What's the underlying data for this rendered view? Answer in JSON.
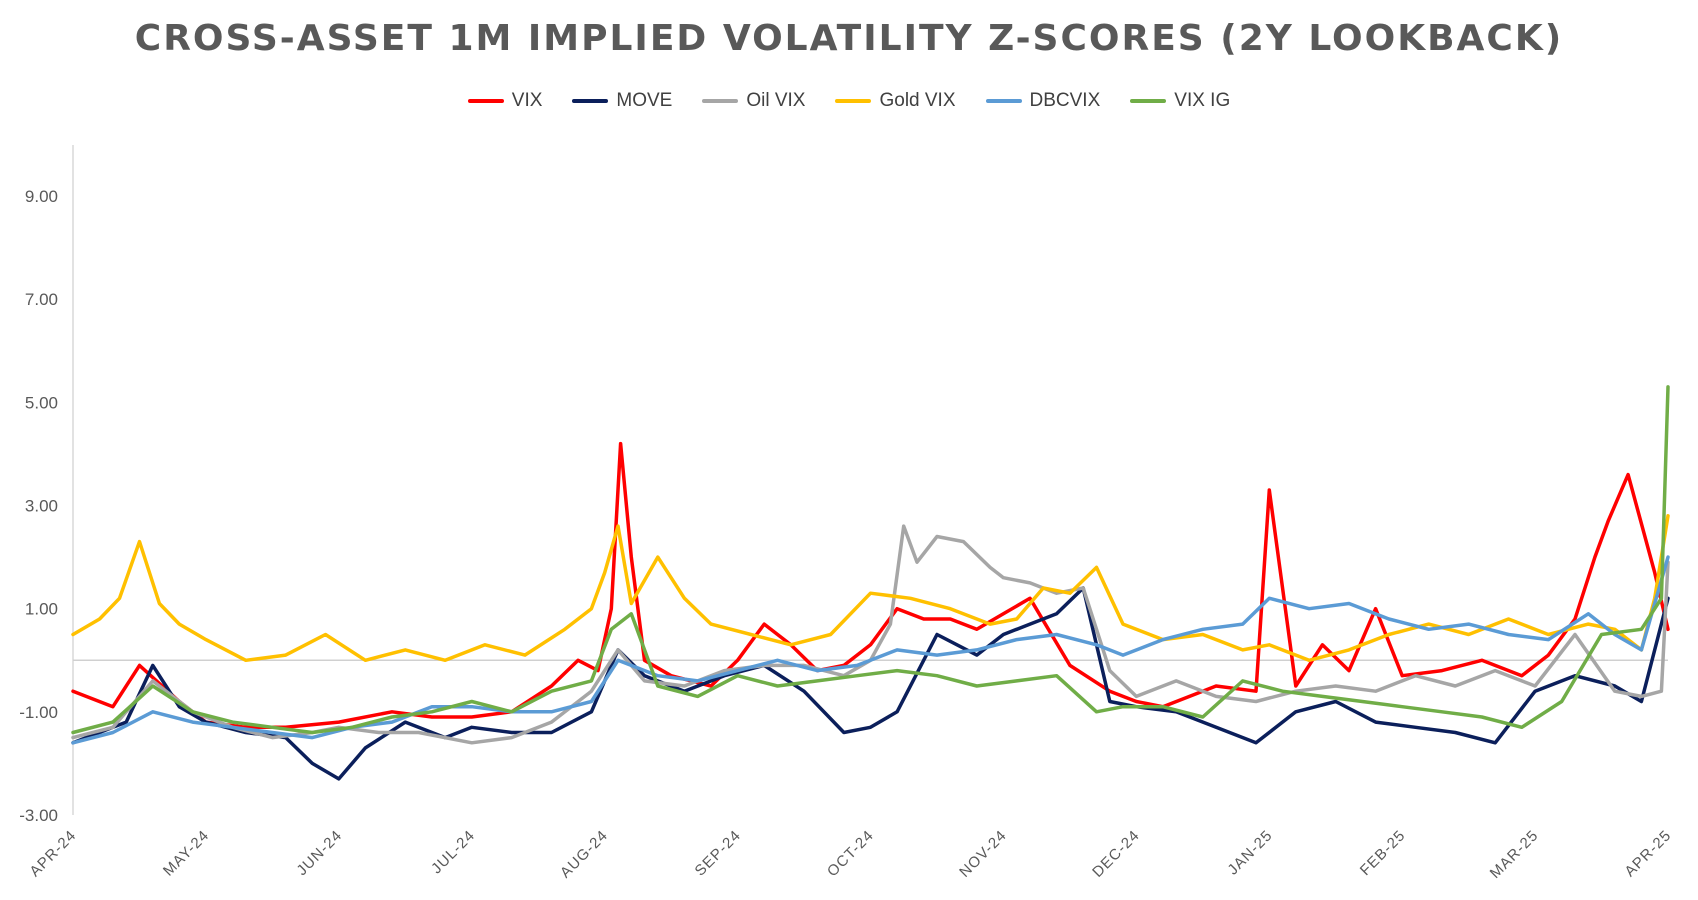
{
  "chart_data": {
    "type": "line",
    "title": "CROSS-ASSET 1M IMPLIED VOLATILITY Z-SCORES (2Y LOOKBACK)",
    "xlabel": "",
    "ylabel": "",
    "ylim": [
      -3,
      10
    ],
    "y_ticks": [
      "9.00",
      "7.00",
      "5.00",
      "3.00",
      "1.00",
      "-1.00",
      "-3.00"
    ],
    "y_tick_values": [
      9,
      7,
      5,
      3,
      1,
      -1,
      -3
    ],
    "x_tick_labels": [
      "APR-24",
      "MAY-24",
      "JUN-24",
      "JUL-24",
      "AUG-24",
      "SEP-24",
      "OCT-24",
      "NOV-24",
      "DEC-24",
      "JAN-25",
      "FEB-25",
      "MAR-25",
      "APR-25"
    ],
    "x_range": [
      0,
      12
    ],
    "x_unit": "months since APR-24",
    "legend_position": "top-center",
    "grid": false,
    "series": [
      {
        "name": "VIX",
        "color": "#FF0000",
        "x": [
          0,
          0.3,
          0.5,
          0.8,
          1.0,
          1.3,
          1.6,
          2.0,
          2.4,
          2.7,
          3.0,
          3.3,
          3.6,
          3.8,
          3.95,
          4.05,
          4.12,
          4.2,
          4.3,
          4.5,
          4.8,
          5.0,
          5.2,
          5.4,
          5.6,
          5.8,
          6.0,
          6.2,
          6.4,
          6.6,
          6.8,
          7.0,
          7.2,
          7.5,
          7.8,
          8.0,
          8.2,
          8.4,
          8.6,
          8.9,
          9.0,
          9.2,
          9.4,
          9.6,
          9.8,
          10.0,
          10.3,
          10.6,
          10.9,
          11.1,
          11.3,
          11.45,
          11.55,
          11.7,
          11.9,
          12.0
        ],
        "values": [
          -0.6,
          -0.9,
          -0.1,
          -0.8,
          -1.2,
          -1.3,
          -1.3,
          -1.2,
          -1.0,
          -1.1,
          -1.1,
          -1.0,
          -0.5,
          0.0,
          -0.2,
          1.0,
          4.2,
          2.0,
          0.0,
          -0.3,
          -0.5,
          0.0,
          0.7,
          0.3,
          -0.2,
          -0.1,
          0.3,
          1.0,
          0.8,
          0.8,
          0.6,
          0.9,
          1.2,
          -0.1,
          -0.6,
          -0.8,
          -0.9,
          -0.7,
          -0.5,
          -0.6,
          3.3,
          -0.5,
          0.3,
          -0.2,
          1.0,
          -0.3,
          -0.2,
          0.0,
          -0.3,
          0.1,
          0.8,
          2.0,
          2.7,
          3.6,
          1.7,
          0.6
        ]
      },
      {
        "name": "MOVE",
        "color": "#0B1F5B",
        "x": [
          0,
          0.4,
          0.6,
          0.8,
          1.0,
          1.3,
          1.6,
          1.8,
          2.0,
          2.2,
          2.5,
          2.8,
          3.0,
          3.3,
          3.6,
          3.9,
          4.1,
          4.3,
          4.6,
          4.9,
          5.2,
          5.5,
          5.8,
          6.0,
          6.2,
          6.5,
          6.8,
          7.0,
          7.2,
          7.4,
          7.6,
          7.8,
          8.0,
          8.3,
          8.6,
          8.9,
          9.2,
          9.5,
          9.8,
          10.1,
          10.4,
          10.7,
          11.0,
          11.3,
          11.6,
          11.8,
          12.0
        ],
        "values": [
          -1.6,
          -1.2,
          -0.1,
          -0.9,
          -1.2,
          -1.4,
          -1.5,
          -2.0,
          -2.3,
          -1.7,
          -1.2,
          -1.5,
          -1.3,
          -1.4,
          -1.4,
          -1.0,
          0.2,
          -0.3,
          -0.6,
          -0.3,
          -0.1,
          -0.6,
          -1.4,
          -1.3,
          -1.0,
          0.5,
          0.1,
          0.5,
          0.7,
          0.9,
          1.4,
          -0.8,
          -0.9,
          -1.0,
          -1.3,
          -1.6,
          -1.0,
          -0.8,
          -1.2,
          -1.3,
          -1.4,
          -1.6,
          -0.6,
          -0.3,
          -0.5,
          -0.8,
          1.2
        ]
      },
      {
        "name": "Oil VIX",
        "color": "#A6A6A6",
        "x": [
          0,
          0.3,
          0.6,
          0.9,
          1.2,
          1.5,
          1.8,
          2.0,
          2.3,
          2.6,
          3.0,
          3.3,
          3.6,
          3.9,
          4.1,
          4.3,
          4.6,
          4.9,
          5.2,
          5.5,
          5.8,
          6.0,
          6.15,
          6.25,
          6.35,
          6.5,
          6.7,
          6.9,
          7.0,
          7.2,
          7.4,
          7.6,
          7.8,
          8.0,
          8.3,
          8.6,
          8.9,
          9.2,
          9.5,
          9.8,
          10.1,
          10.4,
          10.7,
          11.0,
          11.3,
          11.6,
          11.8,
          11.95,
          12.0
        ],
        "values": [
          -1.5,
          -1.3,
          -0.4,
          -1.0,
          -1.3,
          -1.5,
          -1.4,
          -1.3,
          -1.4,
          -1.4,
          -1.6,
          -1.5,
          -1.2,
          -0.6,
          0.2,
          -0.4,
          -0.5,
          -0.2,
          -0.1,
          -0.1,
          -0.3,
          0.0,
          0.7,
          2.6,
          1.9,
          2.4,
          2.3,
          1.8,
          1.6,
          1.5,
          1.3,
          1.4,
          -0.2,
          -0.7,
          -0.4,
          -0.7,
          -0.8,
          -0.6,
          -0.5,
          -0.6,
          -0.3,
          -0.5,
          -0.2,
          -0.5,
          0.5,
          -0.6,
          -0.7,
          -0.6,
          1.9
        ]
      },
      {
        "name": "Gold VIX",
        "color": "#FFC000",
        "x": [
          0,
          0.2,
          0.35,
          0.5,
          0.65,
          0.8,
          1.0,
          1.3,
          1.6,
          1.9,
          2.2,
          2.5,
          2.8,
          3.1,
          3.4,
          3.7,
          3.9,
          4.0,
          4.1,
          4.2,
          4.4,
          4.6,
          4.8,
          5.1,
          5.4,
          5.7,
          6.0,
          6.3,
          6.6,
          6.9,
          7.1,
          7.3,
          7.5,
          7.7,
          7.9,
          8.2,
          8.5,
          8.8,
          9.0,
          9.3,
          9.6,
          9.9,
          10.2,
          10.5,
          10.8,
          11.1,
          11.4,
          11.6,
          11.8,
          11.9,
          12.0
        ],
        "values": [
          0.5,
          0.8,
          1.2,
          2.3,
          1.1,
          0.7,
          0.4,
          0.0,
          0.1,
          0.5,
          0.0,
          0.2,
          0.0,
          0.3,
          0.1,
          0.6,
          1.0,
          1.7,
          2.6,
          1.1,
          2.0,
          1.2,
          0.7,
          0.5,
          0.3,
          0.5,
          1.3,
          1.2,
          1.0,
          0.7,
          0.8,
          1.4,
          1.3,
          1.8,
          0.7,
          0.4,
          0.5,
          0.2,
          0.3,
          0.0,
          0.2,
          0.5,
          0.7,
          0.5,
          0.8,
          0.5,
          0.7,
          0.6,
          0.2,
          1.2,
          2.8
        ]
      },
      {
        "name": "DBCVIX",
        "color": "#5B9BD5",
        "x": [
          0,
          0.3,
          0.6,
          0.9,
          1.2,
          1.5,
          1.8,
          2.1,
          2.4,
          2.7,
          3.0,
          3.3,
          3.6,
          3.9,
          4.1,
          4.4,
          4.7,
          5.0,
          5.3,
          5.6,
          5.9,
          6.2,
          6.5,
          6.8,
          7.1,
          7.4,
          7.7,
          7.9,
          8.2,
          8.5,
          8.8,
          9.0,
          9.3,
          9.6,
          9.9,
          10.2,
          10.5,
          10.8,
          11.1,
          11.4,
          11.6,
          11.8,
          12.0
        ],
        "values": [
          -1.6,
          -1.4,
          -1.0,
          -1.2,
          -1.3,
          -1.4,
          -1.5,
          -1.3,
          -1.2,
          -0.9,
          -0.9,
          -1.0,
          -1.0,
          -0.8,
          0.0,
          -0.3,
          -0.4,
          -0.2,
          0.0,
          -0.2,
          -0.1,
          0.2,
          0.1,
          0.2,
          0.4,
          0.5,
          0.3,
          0.1,
          0.4,
          0.6,
          0.7,
          1.2,
          1.0,
          1.1,
          0.8,
          0.6,
          0.7,
          0.5,
          0.4,
          0.9,
          0.5,
          0.2,
          2.0
        ]
      },
      {
        "name": "VIX IG",
        "color": "#70AD47",
        "x": [
          0,
          0.3,
          0.6,
          0.9,
          1.2,
          1.5,
          1.8,
          2.1,
          2.4,
          2.7,
          3.0,
          3.3,
          3.6,
          3.9,
          4.05,
          4.2,
          4.4,
          4.7,
          5.0,
          5.3,
          5.6,
          5.9,
          6.2,
          6.5,
          6.8,
          7.1,
          7.4,
          7.7,
          7.9,
          8.2,
          8.5,
          8.8,
          9.1,
          9.4,
          9.7,
          10.0,
          10.3,
          10.6,
          10.9,
          11.2,
          11.5,
          11.8,
          11.95,
          12.0
        ],
        "values": [
          -1.4,
          -1.2,
          -0.5,
          -1.0,
          -1.2,
          -1.3,
          -1.4,
          -1.3,
          -1.1,
          -1.0,
          -0.8,
          -1.0,
          -0.6,
          -0.4,
          0.6,
          0.9,
          -0.5,
          -0.7,
          -0.3,
          -0.5,
          -0.4,
          -0.3,
          -0.2,
          -0.3,
          -0.5,
          -0.4,
          -0.3,
          -1.0,
          -0.9,
          -0.9,
          -1.1,
          -0.4,
          -0.6,
          -0.7,
          -0.8,
          -0.9,
          -1.0,
          -1.1,
          -1.3,
          -0.8,
          0.5,
          0.6,
          1.2,
          5.3
        ]
      }
    ]
  }
}
